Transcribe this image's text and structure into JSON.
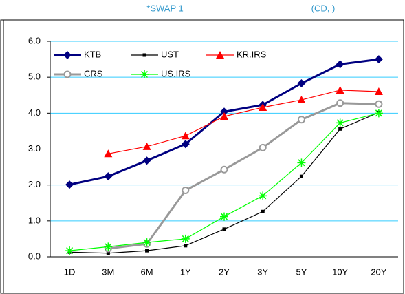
{
  "chart_data": {
    "type": "line",
    "title": "*SWAP 1",
    "subtitle": "(CD,        )",
    "categories": [
      "1D",
      "3M",
      "6M",
      "1Y",
      "2Y",
      "3Y",
      "5Y",
      "10Y",
      "20Y"
    ],
    "series": [
      {
        "name": "KTB",
        "color": "#000080",
        "marker": "diamond",
        "values": [
          2.01,
          2.24,
          2.68,
          3.14,
          4.04,
          4.23,
          4.83,
          5.36,
          5.5
        ]
      },
      {
        "name": "UST",
        "color": "#000000",
        "marker": "square",
        "values": [
          0.13,
          0.1,
          0.17,
          0.31,
          0.77,
          1.26,
          2.24,
          3.56,
          4.02
        ]
      },
      {
        "name": "KR.IRS",
        "color": "#ff0000",
        "marker": "triangle",
        "values": [
          null,
          2.87,
          3.07,
          3.37,
          3.91,
          4.16,
          4.37,
          4.64,
          4.6
        ]
      },
      {
        "name": "CRS",
        "color": "#999999",
        "marker": "circle",
        "values": [
          null,
          0.23,
          0.36,
          1.85,
          2.43,
          3.04,
          3.82,
          4.28,
          4.25
        ]
      },
      {
        "name": "US.IRS",
        "color": "#00ff00",
        "marker": "star",
        "values": [
          0.17,
          0.28,
          0.4,
          0.5,
          1.12,
          1.7,
          2.62,
          3.73,
          4.0
        ]
      }
    ],
    "ylim": [
      0,
      6
    ],
    "yticks": [
      {
        "value": 0,
        "label": "0.0"
      },
      {
        "value": 1,
        "label": "1.0"
      },
      {
        "value": 2,
        "label": "2.0"
      },
      {
        "value": 3,
        "label": "3.0"
      },
      {
        "value": 4,
        "label": "4.0"
      },
      {
        "value": 5,
        "label": "5.0"
      },
      {
        "value": 6,
        "label": "6.0"
      }
    ],
    "grid": true,
    "legend": "upper left"
  }
}
